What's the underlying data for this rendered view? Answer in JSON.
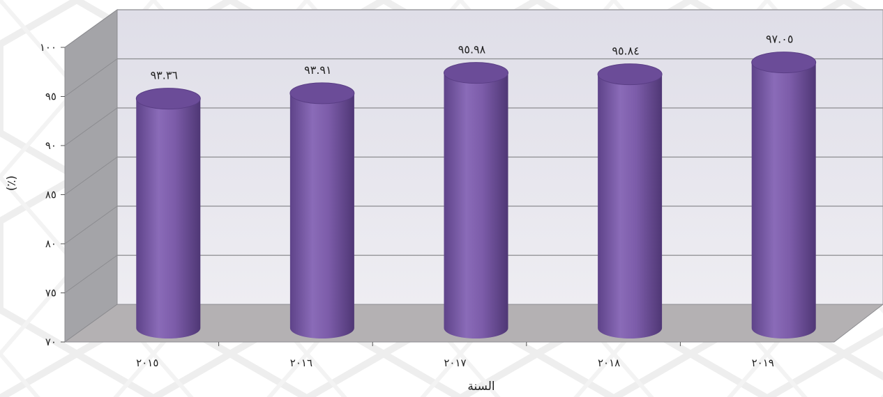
{
  "chart_data": {
    "type": "bar",
    "style": "3d-cylinder",
    "categories": [
      "٢٠١٥",
      "٢٠١٦",
      "٢٠١٧",
      "٢٠١٨",
      "٢٠١٩"
    ],
    "values": [
      93.36,
      93.91,
      95.98,
      95.84,
      97.05
    ],
    "data_labels": [
      "٩٣.٣٦",
      "٩٣.٩١",
      "٩٥.٩٨",
      "٩٥.٨٤",
      "٩٧.٠٥"
    ],
    "y_ticks": [
      70,
      75,
      80,
      85,
      90,
      95,
      100
    ],
    "y_tick_labels": [
      "٧٠",
      "٧٥",
      "٨٠",
      "٨٥",
      "٩٠",
      "٩٥",
      "١٠٠"
    ],
    "ylim": [
      70,
      100
    ],
    "xlabel": "السنة",
    "ylabel": "(٪)",
    "grid": true,
    "legend": "none",
    "colors": {
      "bar_body": "#7a5aa6",
      "bar_top": "#6a4896",
      "back_wall": "#e4e3ec",
      "side_wall": "#a3a3a6",
      "floor": "#b3b0b2",
      "grid": "#8c8c90",
      "text": "#222222"
    }
  }
}
